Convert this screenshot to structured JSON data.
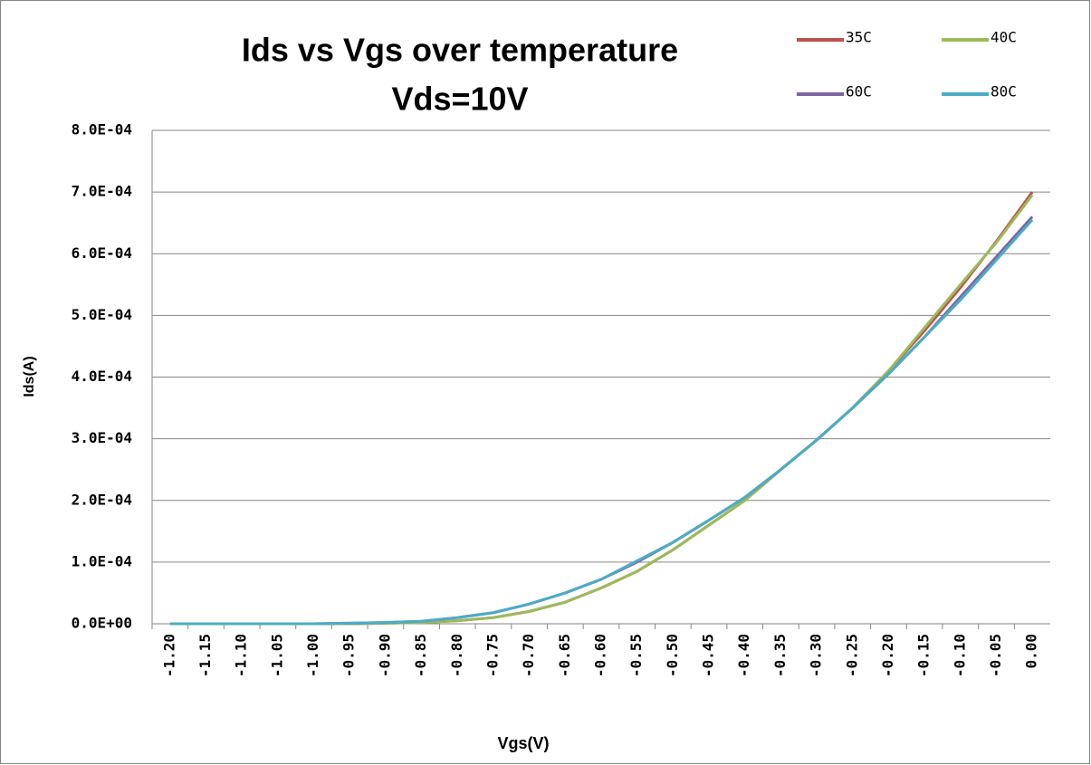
{
  "chart_data": {
    "type": "line",
    "title": "Ids vs Vgs over temperature",
    "subtitle": "Vds=10V",
    "x_label": "Vgs(V)",
    "y_label": "Ids(A)",
    "categories": [
      "-1.20",
      "-1.15",
      "-1.10",
      "-1.05",
      "-1.00",
      "-0.95",
      "-0.90",
      "-0.85",
      "-0.80",
      "-0.75",
      "-0.70",
      "-0.65",
      "-0.60",
      "-0.55",
      "-0.50",
      "-0.45",
      "-0.40",
      "-0.35",
      "-0.30",
      "-0.25",
      "-0.20",
      "-0.15",
      "-0.10",
      "-0.05",
      "0.00"
    ],
    "series": [
      {
        "name": "35C",
        "color": "#c0504d",
        "values": [
          0,
          0,
          0,
          0,
          0,
          0,
          1e-06,
          2e-06,
          5e-06,
          1e-05,
          2e-05,
          3.5e-05,
          5.8e-05,
          8.5e-05,
          0.00012,
          0.00016,
          0.0002,
          0.00025,
          0.000298,
          0.00035,
          0.00041,
          0.000475,
          0.000545,
          0.00062,
          0.0007
        ]
      },
      {
        "name": "40C",
        "color": "#9bbb59",
        "values": [
          0,
          0,
          0,
          0,
          0,
          0,
          1e-06,
          2e-06,
          5e-06,
          1e-05,
          2e-05,
          3.5e-05,
          5.8e-05,
          8.5e-05,
          0.00012,
          0.00016,
          0.0002,
          0.00025,
          0.000298,
          0.00035,
          0.00041,
          0.00048,
          0.00055,
          0.000618,
          0.000695
        ]
      },
      {
        "name": "60C",
        "color": "#8064a2",
        "values": [
          0,
          0,
          0,
          0,
          0,
          1e-06,
          2e-06,
          4e-06,
          1e-05,
          1.8e-05,
          3.2e-05,
          5e-05,
          7.2e-05,
          0.0001,
          0.000132,
          0.000168,
          0.000205,
          0.00025,
          0.000298,
          0.00035,
          0.000405,
          0.000465,
          0.00053,
          0.000595,
          0.00066
        ]
      },
      {
        "name": "80C",
        "color": "#4bacc6",
        "values": [
          0,
          0,
          0,
          0,
          0,
          1e-06,
          2e-06,
          4e-06,
          1e-05,
          1.8e-05,
          3.2e-05,
          5e-05,
          7.2e-05,
          0.000102,
          0.000132,
          0.000168,
          0.000205,
          0.00025,
          0.000298,
          0.00035,
          0.000405,
          0.000465,
          0.000525,
          0.00059,
          0.000655
        ]
      }
    ],
    "ylim": [
      0,
      0.0008
    ],
    "yticks": [
      {
        "value": 0,
        "label": "0.0E+00"
      },
      {
        "value": 0.0001,
        "label": "1.0E-04"
      },
      {
        "value": 0.0002,
        "label": "2.0E-04"
      },
      {
        "value": 0.0003,
        "label": "3.0E-04"
      },
      {
        "value": 0.0004,
        "label": "4.0E-04"
      },
      {
        "value": 0.0005,
        "label": "5.0E-04"
      },
      {
        "value": 0.0006,
        "label": "6.0E-04"
      },
      {
        "value": 0.0007,
        "label": "7.0E-04"
      },
      {
        "value": 0.0008,
        "label": "8.0E-04"
      }
    ],
    "grid": true,
    "legend": "top-right"
  }
}
